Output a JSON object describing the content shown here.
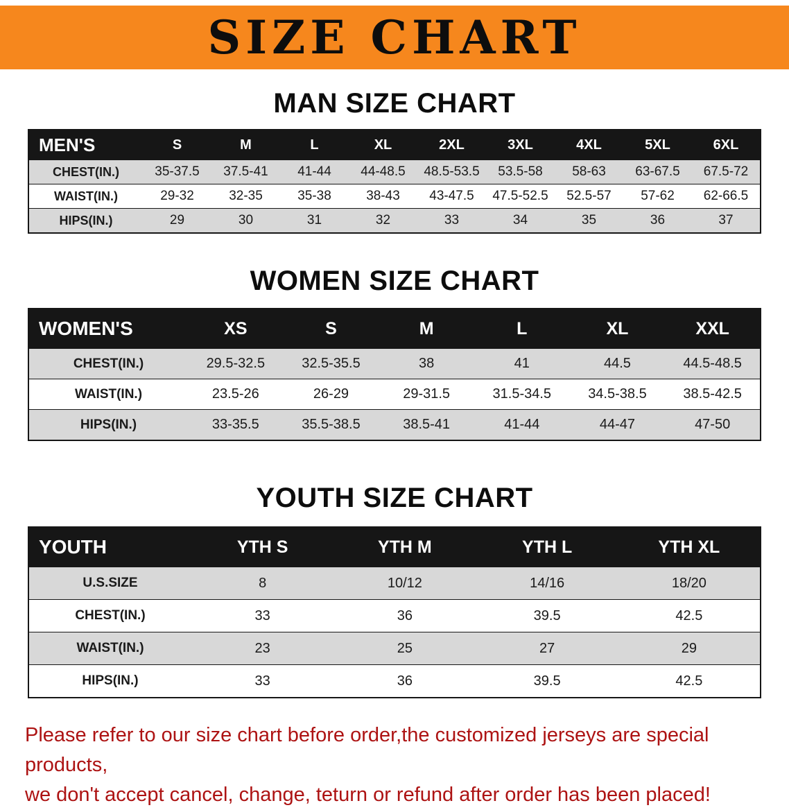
{
  "banner": {
    "title": "SIZE CHART"
  },
  "colors": {
    "banner_bg": "#f6871d",
    "table_header_bg": "#161616",
    "shaded_row_bg": "#d8d8d8",
    "footer_text": "#ad1313"
  },
  "sections": [
    {
      "heading": "MAN SIZE CHART",
      "table": {
        "header": [
          "MEN'S",
          "S",
          "M",
          "L",
          "XL",
          "2XL",
          "3XL",
          "4XL",
          "5XL",
          "6XL"
        ],
        "rows": [
          {
            "label": "CHEST(IN.)",
            "values": [
              "35-37.5",
              "37.5-41",
              "41-44",
              "44-48.5",
              "48.5-53.5",
              "53.5-58",
              "58-63",
              "63-67.5",
              "67.5-72"
            ]
          },
          {
            "label": "WAIST(IN.)",
            "values": [
              "29-32",
              "32-35",
              "35-38",
              "38-43",
              "43-47.5",
              "47.5-52.5",
              "52.5-57",
              "57-62",
              "62-66.5"
            ]
          },
          {
            "label": "HIPS(IN.)",
            "values": [
              "29",
              "30",
              "31",
              "32",
              "33",
              "34",
              "35",
              "36",
              "37"
            ]
          }
        ]
      }
    },
    {
      "heading": "WOMEN SIZE CHART",
      "table": {
        "header": [
          "WOMEN'S",
          "XS",
          "S",
          "M",
          "L",
          "XL",
          "XXL"
        ],
        "rows": [
          {
            "label": "CHEST(IN.)",
            "values": [
              "29.5-32.5",
              "32.5-35.5",
              "38",
              "41",
              "44.5",
              "44.5-48.5"
            ]
          },
          {
            "label": "WAIST(IN.)",
            "values": [
              "23.5-26",
              "26-29",
              "29-31.5",
              "31.5-34.5",
              "34.5-38.5",
              "38.5-42.5"
            ]
          },
          {
            "label": "HIPS(IN.)",
            "values": [
              "33-35.5",
              "35.5-38.5",
              "38.5-41",
              "41-44",
              "44-47",
              "47-50"
            ]
          }
        ]
      }
    },
    {
      "heading": "YOUTH SIZE CHART",
      "table": {
        "header": [
          "YOUTH",
          "YTH S",
          "YTH M",
          "YTH L",
          "YTH XL"
        ],
        "rows": [
          {
            "label": "U.S.SIZE",
            "values": [
              "8",
              "10/12",
              "14/16",
              "18/20"
            ]
          },
          {
            "label": "CHEST(IN.)",
            "values": [
              "33",
              "36",
              "39.5",
              "42.5"
            ]
          },
          {
            "label": "WAIST(IN.)",
            "values": [
              "23",
              "25",
              "27",
              "29"
            ]
          },
          {
            "label": "HIPS(IN.)",
            "values": [
              "33",
              "36",
              "39.5",
              "42.5"
            ]
          }
        ]
      }
    }
  ],
  "footer": {
    "line1": "Please refer to our size chart before order,the customized jerseys are special products,",
    "line2": "we don't accept cancel, change, teturn or refund after order has been placed!"
  }
}
